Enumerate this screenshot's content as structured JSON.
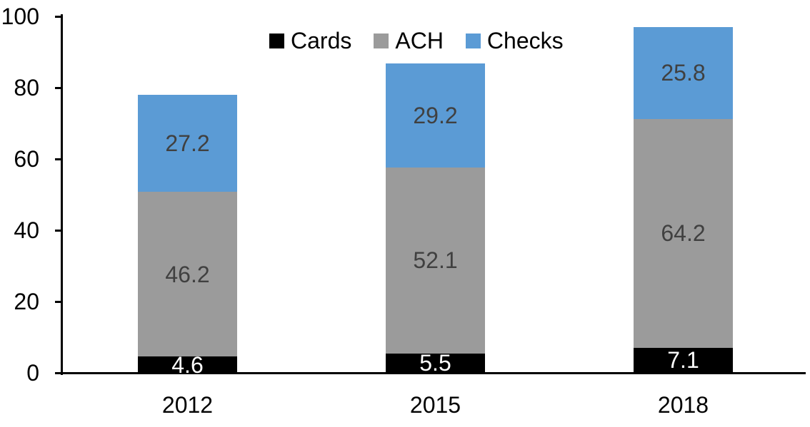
{
  "chart_data": {
    "type": "bar",
    "stacked": true,
    "title": "",
    "xlabel": "",
    "ylabel": "",
    "categories": [
      "2012",
      "2015",
      "2018"
    ],
    "series": [
      {
        "name": "Cards",
        "color": "#000000",
        "label_color": "#FFFFFF",
        "values": [
          4.6,
          5.5,
          7.1
        ]
      },
      {
        "name": "ACH",
        "color": "#9B9B9B",
        "label_color": "#404040",
        "values": [
          46.2,
          52.1,
          64.2
        ]
      },
      {
        "name": "Checks",
        "color": "#5B9BD5",
        "label_color": "#404040",
        "values": [
          27.2,
          29.2,
          25.8
        ]
      }
    ],
    "stack_totals": [
      78.0,
      86.8,
      97.1
    ],
    "ylim": [
      0,
      100
    ],
    "yticks": [
      0,
      20,
      40,
      60,
      80,
      100
    ],
    "grid": false,
    "legend_position": "top",
    "axis_color": "#000000",
    "background_color": "#FFFFFF"
  }
}
